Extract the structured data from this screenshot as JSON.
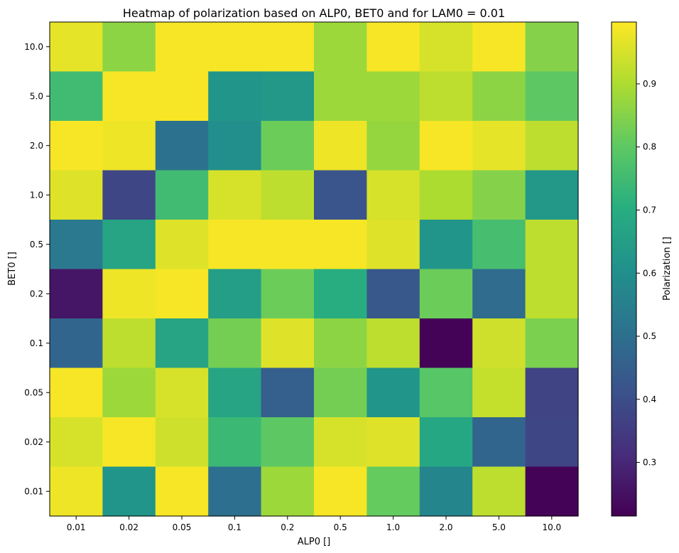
{
  "chart_data": {
    "type": "heatmap",
    "title": "Heatmap of  polarization based on ALP0, BET0 and for LAM0 =  0.01",
    "xlabel": "ALP0 []",
    "ylabel": "BET0 []",
    "x_categories": [
      "0.01",
      "0.02",
      "0.05",
      "0.1",
      "0.2",
      "0.5",
      "1.0",
      "2.0",
      "5.0",
      "10.0"
    ],
    "y_categories": [
      "10.0",
      "5.0",
      "2.0",
      "1.0",
      "0.5",
      "0.2",
      "0.1",
      "0.05",
      "0.02",
      "0.01"
    ],
    "values": [
      [
        0.97,
        0.86,
        0.99,
        0.99,
        0.99,
        0.88,
        0.99,
        0.95,
        0.99,
        0.85
      ],
      [
        0.75,
        0.99,
        0.99,
        0.62,
        0.63,
        0.88,
        0.88,
        0.92,
        0.86,
        0.8
      ],
      [
        0.99,
        0.98,
        0.51,
        0.6,
        0.82,
        0.98,
        0.87,
        0.99,
        0.97,
        0.92
      ],
      [
        0.96,
        0.38,
        0.75,
        0.95,
        0.92,
        0.42,
        0.95,
        0.9,
        0.85,
        0.63
      ],
      [
        0.53,
        0.67,
        0.96,
        0.99,
        0.99,
        0.99,
        0.96,
        0.62,
        0.76,
        0.92
      ],
      [
        0.26,
        0.98,
        0.99,
        0.65,
        0.82,
        0.7,
        0.43,
        0.82,
        0.49,
        0.92
      ],
      [
        0.47,
        0.92,
        0.67,
        0.83,
        0.96,
        0.86,
        0.92,
        0.22,
        0.94,
        0.84
      ],
      [
        0.99,
        0.88,
        0.95,
        0.67,
        0.45,
        0.83,
        0.62,
        0.79,
        0.93,
        0.37
      ],
      [
        0.95,
        0.99,
        0.94,
        0.74,
        0.8,
        0.95,
        0.96,
        0.68,
        0.47,
        0.38
      ],
      [
        0.98,
        0.62,
        0.99,
        0.5,
        0.88,
        0.99,
        0.81,
        0.57,
        0.92,
        0.22
      ]
    ],
    "vmin": 0.215,
    "vmax": 0.998,
    "colormap": "viridis",
    "colorbar": {
      "label": "Polarization []",
      "ticks": [
        0.3,
        0.4,
        0.5,
        0.6,
        0.7,
        0.8,
        0.9
      ],
      "tick_labels": [
        "0.3",
        "0.4",
        "0.5",
        "0.6",
        "0.7",
        "0.8",
        "0.9"
      ]
    },
    "grid": false,
    "legend": "colorbar-right"
  }
}
